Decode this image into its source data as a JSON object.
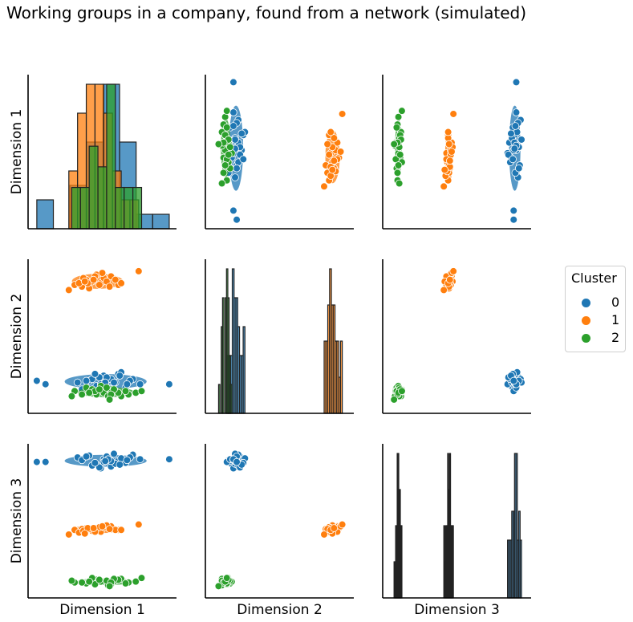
{
  "title": "Working groups in a company, found from a network (simulated)",
  "legend": {
    "title": "Cluster",
    "entries": [
      {
        "label": "0",
        "color": "#1f77b4"
      },
      {
        "label": "1",
        "color": "#ff7f0e"
      },
      {
        "label": "2",
        "color": "#2ca02c"
      }
    ]
  },
  "chart_data": {
    "type": "scatter",
    "subtype": "pairplot",
    "variables": [
      "Dimension 1",
      "Dimension 2",
      "Dimension 3"
    ],
    "diagonal": "histogram",
    "off_diagonal": "scatter with covariance ellipse per cluster",
    "ticks_shown": false,
    "grid": false,
    "legend_placement": "right",
    "clusters": [
      {
        "name": "0",
        "color": "#1f77b4",
        "points": [
          [
            0.1,
            0.27,
            1.85
          ],
          [
            0.32,
            0.28,
            1.9
          ],
          [
            0.5,
            0.32,
            1.88
          ],
          [
            0.55,
            0.3,
            1.8
          ],
          [
            0.75,
            0.27,
            1.88
          ],
          [
            0.45,
            0.26,
            1.82
          ],
          [
            0.6,
            0.33,
            1.86
          ],
          [
            0.4,
            0.29,
            1.92
          ],
          [
            0.65,
            0.25,
            1.84
          ],
          [
            0.52,
            0.31,
            1.91
          ],
          [
            0.48,
            0.27,
            1.78
          ],
          [
            0.7,
            0.3,
            1.93
          ],
          [
            0.35,
            0.24,
            1.87
          ],
          [
            0.58,
            0.28,
            1.83
          ],
          [
            0.62,
            0.34,
            1.89
          ],
          [
            0.42,
            0.3,
            1.81
          ],
          [
            0.55,
            0.26,
            1.86
          ],
          [
            0.68,
            0.29,
            1.9
          ],
          [
            0.5,
            0.23,
            1.85
          ],
          [
            0.47,
            0.31,
            1.79
          ],
          [
            0.57,
            0.28,
            1.94
          ],
          [
            0.53,
            0.25,
            1.88
          ],
          [
            0.44,
            0.33,
            1.84
          ],
          [
            0.66,
            0.27,
            1.87
          ],
          [
            0.38,
            0.29,
            1.91
          ],
          [
            0.61,
            0.32,
            1.82
          ],
          [
            0.51,
            0.28,
            1.86
          ],
          [
            0.95,
            0.27,
            1.88
          ],
          [
            0.04,
            0.29,
            1.85
          ]
        ]
      },
      {
        "name": "1",
        "color": "#ff7f0e",
        "points": [
          [
            0.3,
            0.85,
            1.1
          ],
          [
            0.38,
            0.88,
            1.12
          ],
          [
            0.48,
            0.86,
            1.08
          ],
          [
            0.55,
            0.9,
            1.14
          ],
          [
            0.35,
            0.84,
            1.11
          ],
          [
            0.42,
            0.87,
            1.09
          ],
          [
            0.5,
            0.89,
            1.13
          ],
          [
            0.6,
            0.85,
            1.1
          ],
          [
            0.33,
            0.86,
            1.07
          ],
          [
            0.45,
            0.91,
            1.12
          ],
          [
            0.4,
            0.83,
            1.11
          ],
          [
            0.52,
            0.87,
            1.15
          ],
          [
            0.36,
            0.89,
            1.09
          ],
          [
            0.47,
            0.85,
            1.13
          ],
          [
            0.58,
            0.88,
            1.1
          ],
          [
            0.44,
            0.9,
            1.08
          ],
          [
            0.39,
            0.86,
            1.12
          ],
          [
            0.54,
            0.84,
            1.11
          ],
          [
            0.49,
            0.92,
            1.14
          ],
          [
            0.37,
            0.87,
            1.06
          ],
          [
            0.62,
            0.86,
            1.1
          ],
          [
            0.43,
            0.88,
            1.12
          ],
          [
            0.74,
            0.93,
            1.16
          ],
          [
            0.26,
            0.82,
            1.05
          ]
        ]
      },
      {
        "name": "2",
        "color": "#2ca02c",
        "points": [
          [
            0.3,
            0.23,
            0.52
          ],
          [
            0.45,
            0.21,
            0.55
          ],
          [
            0.55,
            0.24,
            0.5
          ],
          [
            0.62,
            0.2,
            0.56
          ],
          [
            0.5,
            0.22,
            0.53
          ],
          [
            0.38,
            0.25,
            0.51
          ],
          [
            0.58,
            0.23,
            0.54
          ],
          [
            0.67,
            0.21,
            0.52
          ],
          [
            0.42,
            0.24,
            0.57
          ],
          [
            0.53,
            0.2,
            0.49
          ],
          [
            0.48,
            0.26,
            0.53
          ],
          [
            0.6,
            0.22,
            0.55
          ],
          [
            0.35,
            0.21,
            0.52
          ],
          [
            0.52,
            0.25,
            0.54
          ],
          [
            0.44,
            0.23,
            0.5
          ],
          [
            0.57,
            0.24,
            0.56
          ],
          [
            0.4,
            0.22,
            0.53
          ],
          [
            0.65,
            0.23,
            0.51
          ],
          [
            0.28,
            0.2,
            0.54
          ],
          [
            0.55,
            0.21,
            0.52
          ],
          [
            0.47,
            0.24,
            0.55
          ],
          [
            0.72,
            0.22,
            0.53
          ],
          [
            0.54,
            0.18,
            0.48
          ],
          [
            0.76,
            0.23,
            0.57
          ]
        ]
      }
    ]
  }
}
